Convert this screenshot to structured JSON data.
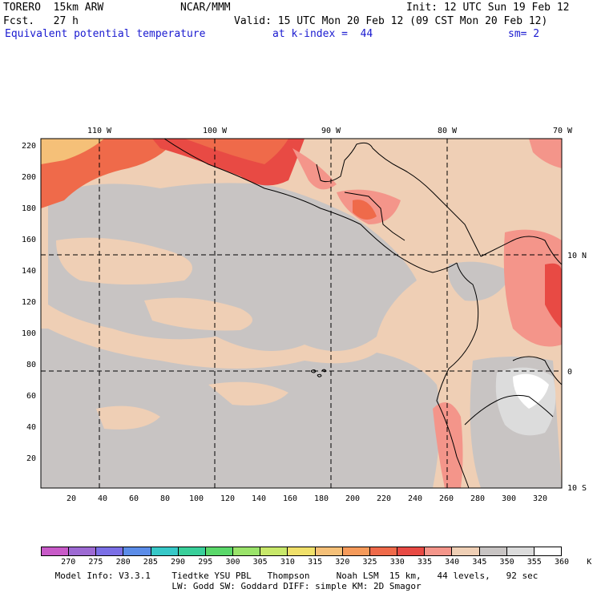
{
  "header": {
    "model": "TORERO  15km ARW",
    "center": "NCAR/MMM",
    "init": "Init: 12 UTC Sun 19 Feb 12",
    "fcst": "Fcst.   27 h",
    "valid": "Valid: 15 UTC Mon 20 Feb 12 (09 CST Mon 20 Feb 12)",
    "field": "Equivalent potential temperature",
    "level": "at k-index =  44",
    "smooth": "sm= 2"
  },
  "map": {
    "lon_labels": [
      "110 W",
      "100 W",
      "90 W",
      "80 W",
      "70 W"
    ],
    "lat_labels": [
      "10 N",
      "0",
      "10 S"
    ],
    "x_ticks": [
      "20",
      "40",
      "60",
      "80",
      "100",
      "120",
      "140",
      "160",
      "180",
      "200",
      "220",
      "240",
      "260",
      "280",
      "300",
      "320"
    ],
    "y_ticks": [
      "220",
      "200",
      "180",
      "160",
      "140",
      "120",
      "100",
      "80",
      "60",
      "40",
      "20"
    ],
    "background_color": "#efcfb5",
    "gray_color": "#c8c4c3"
  },
  "legend": {
    "labels": [
      "270",
      "275",
      "280",
      "285",
      "290",
      "295",
      "300",
      "305",
      "310",
      "315",
      "320",
      "325",
      "330",
      "335",
      "340",
      "345",
      "350",
      "355",
      "360",
      "K"
    ],
    "colors": [
      "#c85ac8",
      "#9d6ad3",
      "#7b6fe6",
      "#5b8ce8",
      "#36c8c8",
      "#39cf9a",
      "#5ad86a",
      "#9ae36a",
      "#c8e86a",
      "#f0e06a",
      "#f5c078",
      "#f59a5a",
      "#ef6a4a",
      "#e84a44",
      "#f4958a",
      "#efcfb5",
      "#c8c4c3",
      "#dcdcdc",
      "#ffffff"
    ]
  },
  "footer": {
    "line1": "Model Info: V3.3.1    Tiedtke YSU PBL   Thompson     Noah LSM  15 km,   44 levels,   92 sec",
    "line2": "LW: Godd SW: Goddard DIFF: simple KM: 2D Smagor"
  }
}
